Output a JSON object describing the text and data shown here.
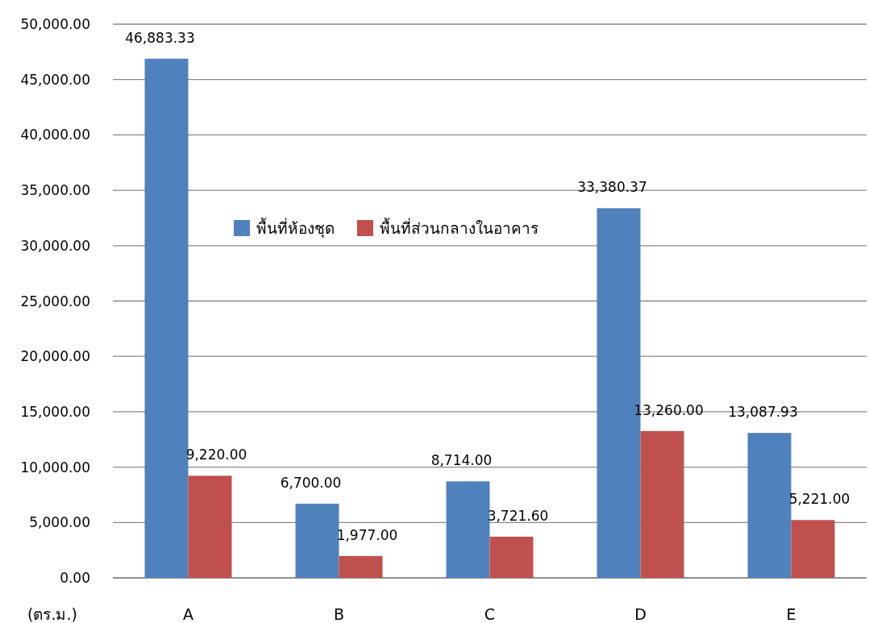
{
  "chart_data": {
    "type": "bar",
    "ylabel": "(ตร.ม.)",
    "categories": [
      "A",
      "B",
      "C",
      "D",
      "E"
    ],
    "series": [
      {
        "name": "พื้นที่ห้องชุด",
        "color": "#4f81bd",
        "values": [
          46883.33,
          6700,
          8714,
          33380.37,
          13087.93
        ],
        "value_labels": [
          "46,883.33",
          "6,700.00",
          "8,714.00",
          "33,380.37",
          "13,087.93"
        ]
      },
      {
        "name": "พื้นที่ส่วนกลางในอาคาร",
        "color": "#c0504d",
        "values": [
          9220,
          1977,
          3721.6,
          13260,
          5221
        ],
        "value_labels": [
          "9,220.00",
          "1,977.00",
          "3,721.60",
          "13,260.00",
          "5,221.00"
        ]
      }
    ],
    "ylim": [
      0,
      50000
    ],
    "yticks": [
      {
        "value": 0,
        "label": "0.00"
      },
      {
        "value": 5000,
        "label": "5,000.00"
      },
      {
        "value": 10000,
        "label": "10,000.00"
      },
      {
        "value": 15000,
        "label": "15,000.00"
      },
      {
        "value": 20000,
        "label": "20,000.00"
      },
      {
        "value": 25000,
        "label": "25,000.00"
      },
      {
        "value": 30000,
        "label": "30,000.00"
      },
      {
        "value": 35000,
        "label": "35,000.00"
      },
      {
        "value": 40000,
        "label": "40,000.00"
      },
      {
        "value": 45000,
        "label": "45,000.00"
      },
      {
        "value": 50000,
        "label": "50,000.00"
      }
    ],
    "grid": "y",
    "legend": "top"
  }
}
